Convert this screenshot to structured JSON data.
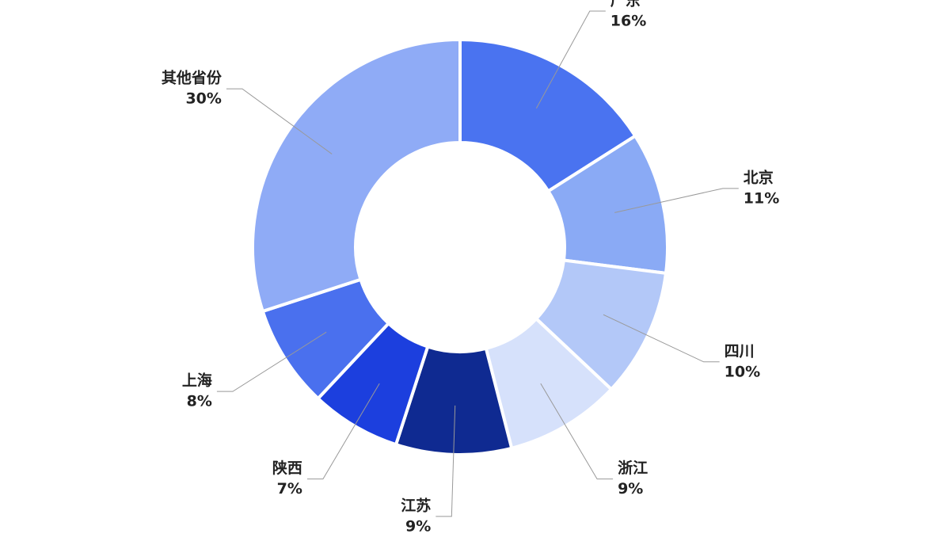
{
  "chart_data": {
    "type": "donut",
    "categories": [
      "广东",
      "北京",
      "四川",
      "浙江",
      "江苏",
      "陕西",
      "上海",
      "其他省份"
    ],
    "values": [
      16,
      11,
      10,
      9,
      9,
      7,
      8,
      30
    ],
    "value_labels": [
      "16%",
      "11%",
      "10%",
      "9%",
      "9%",
      "7%",
      "8%",
      "30%"
    ],
    "colors": [
      "#4a73f0",
      "#8aaaf5",
      "#b3c8f8",
      "#d6e1fb",
      "#0f2a91",
      "#1c3fde",
      "#4a70ee",
      "#8fabf6"
    ]
  }
}
